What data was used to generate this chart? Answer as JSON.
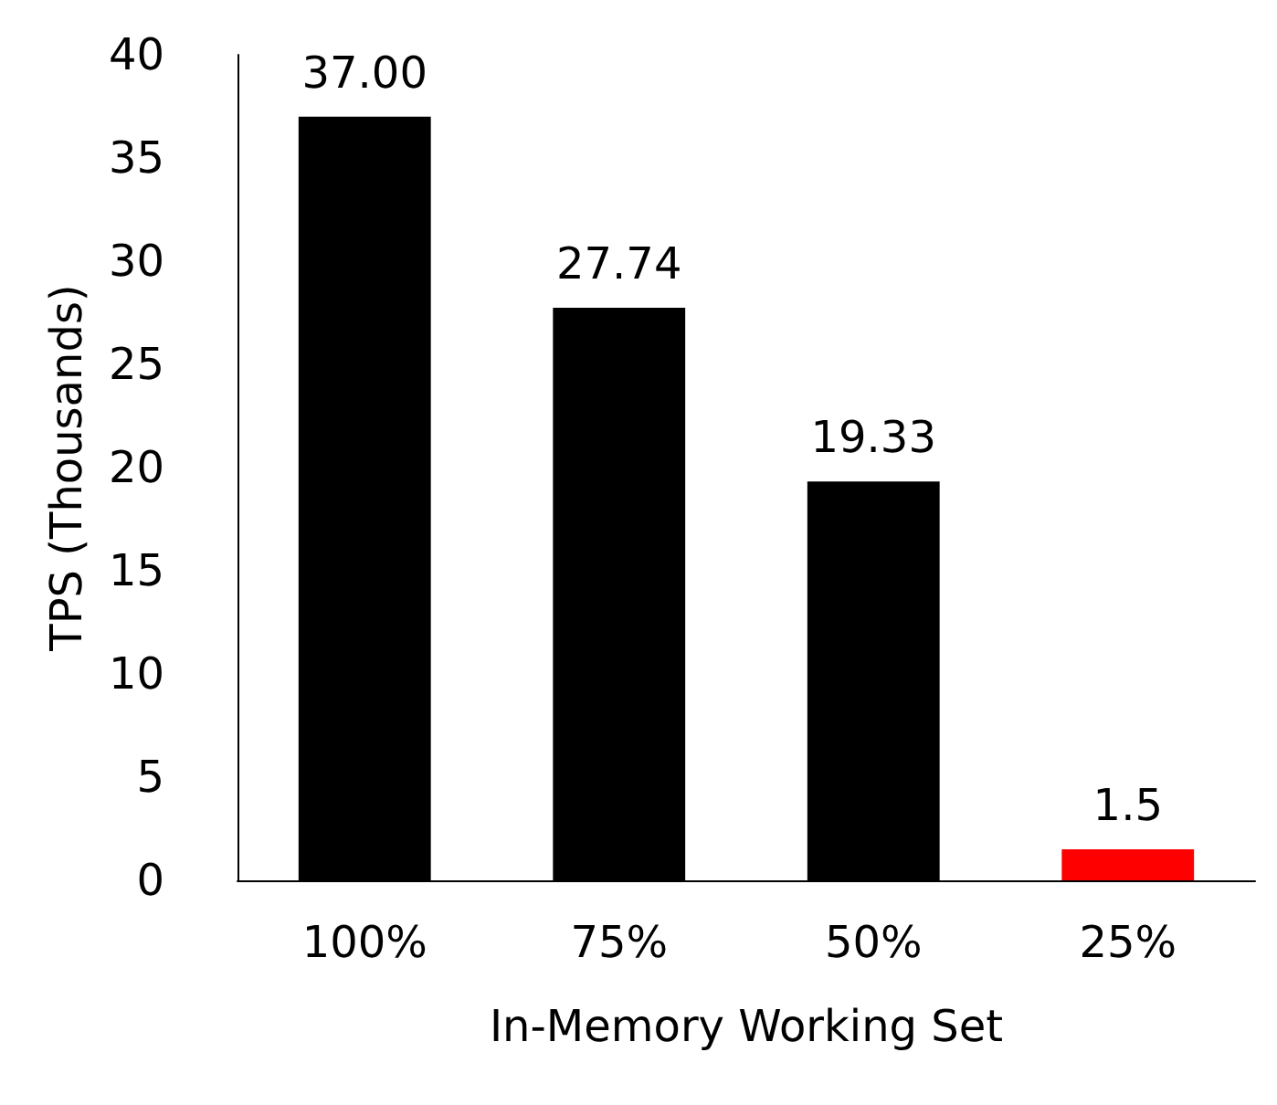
{
  "chart_data": {
    "type": "bar",
    "xlabel": "In-Memory Working Set",
    "ylabel": "TPS (Thousands)",
    "categories": [
      "100%",
      "75%",
      "50%",
      "25%"
    ],
    "values": [
      37.0,
      27.74,
      19.33,
      1.5
    ],
    "colors": [
      "#000000",
      "#000000",
      "#000000",
      "#ff0000"
    ],
    "value_labels": [
      "37.00",
      "27.74",
      "19.33",
      "1.5"
    ],
    "ylim": [
      0,
      40
    ],
    "yticks": [
      0,
      5,
      10,
      15,
      20,
      25,
      30,
      35,
      40
    ]
  }
}
